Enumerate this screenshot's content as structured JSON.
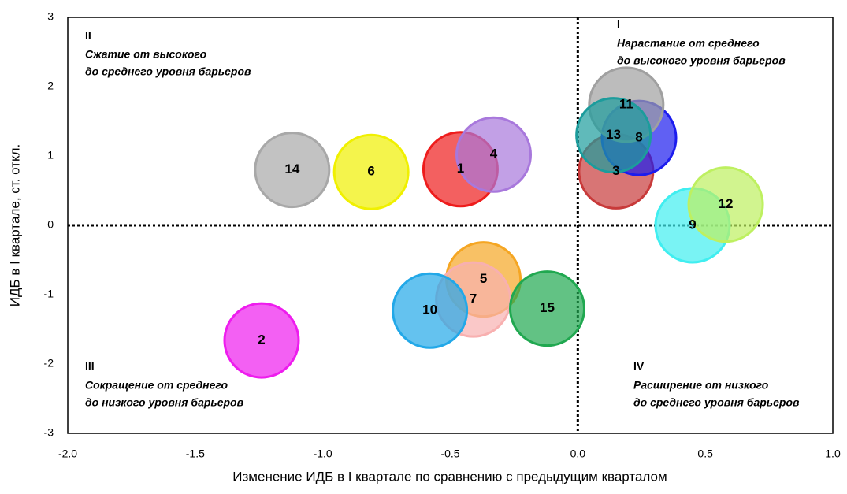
{
  "chart_data": {
    "type": "bubble",
    "x_label": "Изменение  ИДБ в I квартале по сравнению с предыдущим кварталом",
    "y_label": "ИДБ в I  квартале, ст. откл.",
    "labels": [
      "1",
      "2",
      "3",
      "4",
      "5",
      "6",
      "7",
      "8",
      "9",
      "10",
      "11",
      "12",
      "13",
      "14",
      "15"
    ],
    "x": [
      -0.46,
      -1.24,
      0.15,
      -0.33,
      -0.37,
      -0.81,
      -0.41,
      0.24,
      0.45,
      -0.58,
      0.19,
      0.58,
      0.14,
      -1.12,
      -0.12
    ],
    "values": [
      0.81,
      -1.66,
      0.78,
      1.02,
      -0.78,
      0.77,
      -1.07,
      1.26,
      0.0,
      -1.23,
      1.74,
      0.3,
      1.3,
      0.8,
      -1.2
    ],
    "colors": [
      "#ee1c1c",
      "#ee1cee",
      "#c83a3a",
      "#a878dc",
      "#f5a623",
      "#f0f000",
      "#f8b0b0",
      "#1c1cee",
      "#40eef0",
      "#22a8e8",
      "#a0a0a0",
      "#bef060",
      "#1c9c9c",
      "#a8a8a8",
      "#20a850"
    ],
    "xlim": [
      -2,
      1
    ],
    "ylim": [
      -3,
      3
    ],
    "xticks": [
      {
        "value": -2,
        "label": "-2.0"
      },
      {
        "value": -1.5,
        "label": "-1.5"
      },
      {
        "value": -1,
        "label": "-1.0"
      },
      {
        "value": -0.5,
        "label": "-0.5"
      },
      {
        "value": 0,
        "label": "0.0"
      },
      {
        "value": 0.5,
        "label": "0.5"
      },
      {
        "value": 1,
        "label": "1.0"
      }
    ],
    "yticks": [
      -3,
      -2,
      -1,
      0,
      1,
      2,
      3
    ],
    "annotations": [
      {
        "numeral": "I",
        "lines": [
          "Нарастание от среднего",
          "до высокого уровня барьеров"
        ]
      },
      {
        "numeral": "II",
        "lines": [
          "Сжатие от высокого",
          "до среднего уровня барьеров"
        ]
      },
      {
        "numeral": "III",
        "lines": [
          "Сокращение от среднего",
          "до низкого уровня барьеров"
        ]
      },
      {
        "numeral": "IV",
        "lines": [
          "Расширение от низкого",
          "до среднего уровня барьеров"
        ]
      }
    ]
  }
}
